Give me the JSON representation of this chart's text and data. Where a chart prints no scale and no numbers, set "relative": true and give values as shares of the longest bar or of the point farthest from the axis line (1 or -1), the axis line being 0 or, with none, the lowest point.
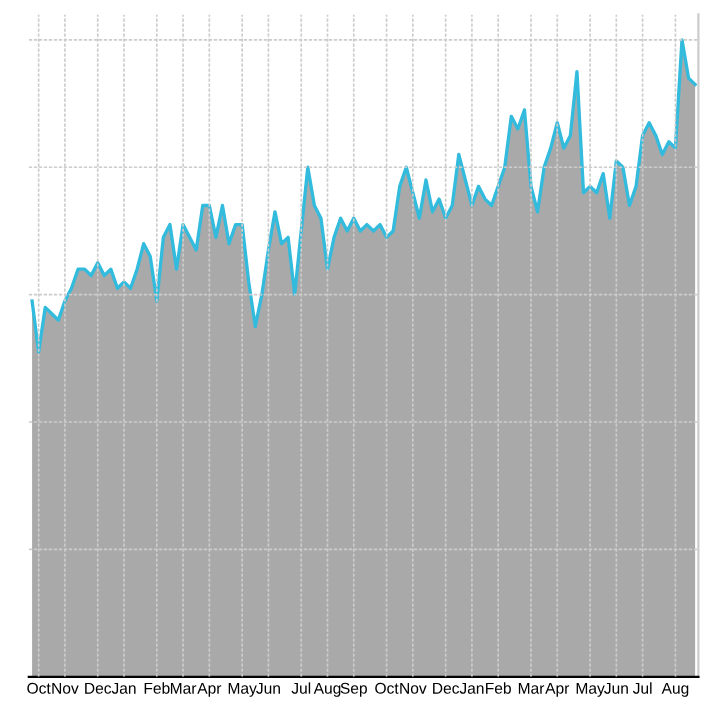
{
  "chart_data": {
    "type": "area",
    "relative": true,
    "grid": true,
    "tick_labels": "x",
    "categories": [
      null,
      "Oct",
      null,
      null,
      null,
      "Nov",
      null,
      null,
      null,
      null,
      "Dec",
      null,
      null,
      null,
      "Jan",
      null,
      null,
      null,
      null,
      "Feb",
      null,
      null,
      null,
      "Mar",
      null,
      null,
      null,
      "Apr",
      null,
      null,
      null,
      null,
      "May",
      null,
      null,
      null,
      "Jun",
      null,
      null,
      null,
      null,
      "Jul",
      null,
      null,
      null,
      "Aug",
      null,
      null,
      null,
      "Sep",
      null,
      null,
      null,
      null,
      "Oct",
      null,
      null,
      null,
      "Nov",
      null,
      null,
      null,
      null,
      "Dec",
      null,
      null,
      null,
      "Jan",
      null,
      null,
      null,
      "Feb",
      null,
      null,
      null,
      null,
      "Mar",
      null,
      null,
      null,
      "Apr",
      null,
      null,
      null,
      null,
      "May",
      null,
      null,
      null,
      "Jun",
      null,
      null,
      null,
      "Jul",
      null,
      null,
      null,
      null,
      "Aug",
      null,
      null,
      null
    ],
    "series": [
      {
        "color": "#33bbdd",
        "values": [
          0.59,
          0.51,
          0.58,
          0.57,
          0.56,
          0.59,
          0.61,
          0.64,
          0.64,
          0.63,
          0.65,
          0.63,
          0.64,
          0.61,
          0.62,
          0.61,
          0.64,
          0.68,
          0.66,
          0.59,
          0.69,
          0.71,
          0.64,
          0.71,
          0.69,
          0.67,
          0.74,
          0.74,
          0.69,
          0.74,
          0.68,
          0.71,
          0.71,
          0.62,
          0.55,
          0.6,
          0.67,
          0.73,
          0.68,
          0.69,
          0.6,
          0.7,
          0.8,
          0.74,
          0.72,
          0.64,
          0.69,
          0.72,
          0.7,
          0.72,
          0.7,
          0.71,
          0.7,
          0.71,
          0.69,
          0.7,
          0.77,
          0.8,
          0.76,
          0.72,
          0.78,
          0.73,
          0.75,
          0.72,
          0.74,
          0.82,
          0.78,
          0.74,
          0.77,
          0.75,
          0.74,
          0.77,
          0.8,
          0.88,
          0.86,
          0.89,
          0.77,
          0.73,
          0.8,
          0.83,
          0.87,
          0.83,
          0.85,
          0.95,
          0.76,
          0.77,
          0.76,
          0.79,
          0.72,
          0.81,
          0.8,
          0.74,
          0.77,
          0.85,
          0.87,
          0.85,
          0.82,
          0.84,
          0.83,
          1,
          0.94,
          0.93
        ]
      }
    ]
  }
}
